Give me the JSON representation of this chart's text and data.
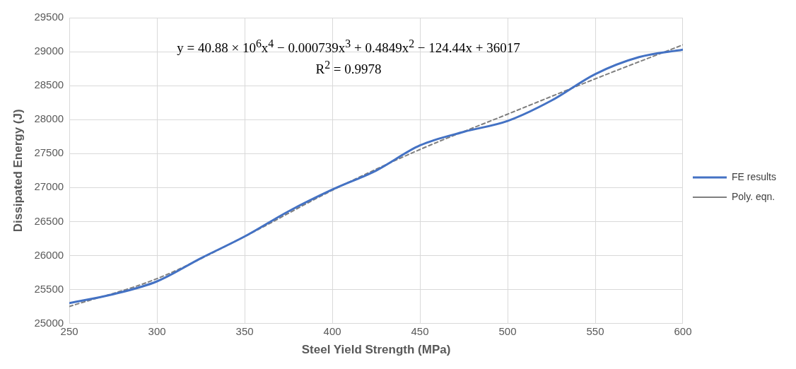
{
  "chart_data": {
    "type": "line",
    "xlabel": "Steel Yield Strength (MPa)",
    "ylabel": "Dissipated Energy (J)",
    "annotations": [
      "y = 40.88 × 10$^{6}$x$^{4}$ − 0.000739x$^{3}$ + 0.4849x$^{2}$ − 124.44x + 36017",
      "R$^{2}$ = 0.9978"
    ],
    "x": [
      250,
      275,
      300,
      325,
      350,
      375,
      400,
      425,
      450,
      475,
      500,
      525,
      550,
      575,
      600
    ],
    "series": [
      {
        "name": "FE results",
        "color": "#4472c4",
        "line_style": "solid",
        "values": [
          25300,
          25430,
          25620,
          25960,
          26280,
          26650,
          26970,
          27250,
          27620,
          27820,
          27980,
          28280,
          28670,
          28920,
          29030
        ]
      },
      {
        "name": "Poly. eqn.",
        "color": "#7f7f7f",
        "line_style": "dashed",
        "x": [
          250,
          300,
          350,
          400,
          450,
          500,
          550,
          600
        ],
        "values": [
          25250,
          25660,
          26280,
          26960,
          27560,
          28080,
          28600,
          29100
        ]
      }
    ],
    "xlim": [
      250,
      600
    ],
    "xticks": [
      250,
      300,
      350,
      400,
      450,
      500,
      550,
      600
    ],
    "ylim": [
      25000,
      29500
    ],
    "yticks": [
      25000,
      25500,
      26000,
      26500,
      27000,
      27500,
      28000,
      28500,
      29000,
      29500
    ],
    "grid": true,
    "legend": "right",
    "marker": "none"
  }
}
